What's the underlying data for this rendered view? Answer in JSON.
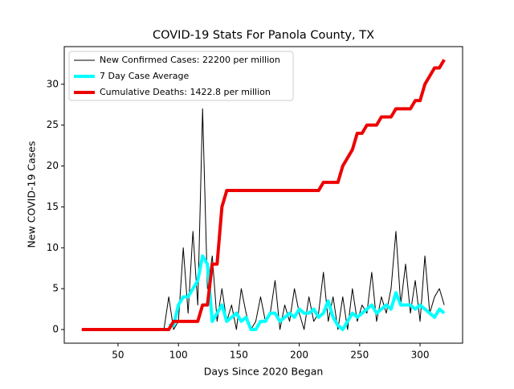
{
  "chart_data": {
    "type": "line",
    "title": "COVID-19 Stats For Panola County, TX",
    "x_label": "Days Since 2020 Began",
    "y_label": "New COVID-19 Cases",
    "x": [
      20,
      24,
      28,
      32,
      36,
      40,
      44,
      48,
      52,
      56,
      60,
      64,
      68,
      72,
      76,
      80,
      84,
      88,
      92,
      96,
      100,
      104,
      108,
      112,
      116,
      120,
      124,
      128,
      132,
      136,
      140,
      144,
      148,
      152,
      156,
      160,
      164,
      168,
      172,
      176,
      180,
      184,
      188,
      192,
      196,
      200,
      204,
      208,
      212,
      216,
      220,
      224,
      228,
      232,
      236,
      240,
      244,
      248,
      252,
      256,
      260,
      264,
      268,
      272,
      276,
      280,
      284,
      288,
      292,
      296,
      300,
      304,
      308,
      312,
      316,
      320
    ],
    "series": [
      {
        "name": "New Confirmed Cases: 22200 per million",
        "color": "#000000",
        "width": 1,
        "values": [
          0,
          0,
          0,
          0,
          0,
          0,
          0,
          0,
          0,
          0,
          0,
          0,
          0,
          0,
          0,
          0,
          0,
          0,
          4,
          0,
          1,
          10,
          2,
          12,
          3,
          27,
          5,
          9,
          1,
          5,
          1,
          3,
          0,
          5,
          2,
          0,
          1,
          4,
          1,
          2,
          6,
          0,
          3,
          1,
          5,
          2,
          0,
          4,
          1,
          2,
          7,
          1,
          4,
          0,
          4,
          0,
          5,
          1,
          3,
          2,
          7,
          1,
          4,
          2,
          5,
          12,
          3,
          8,
          2,
          6,
          1,
          9,
          2,
          4,
          5,
          3
        ]
      },
      {
        "name": "7 Day Case Average",
        "color": "#00ffff",
        "width": 4,
        "values": [
          null,
          null,
          null,
          null,
          null,
          null,
          null,
          null,
          null,
          null,
          null,
          null,
          null,
          null,
          null,
          null,
          null,
          null,
          0.5,
          0.5,
          3,
          4,
          4,
          5,
          6,
          9,
          8,
          1,
          2,
          3,
          1,
          1.5,
          2,
          1,
          1.5,
          0,
          0,
          1,
          1,
          2,
          2,
          1,
          1.5,
          2,
          1.5,
          2.5,
          2,
          2,
          2.5,
          1.5,
          2,
          3.5,
          1.5,
          0.5,
          0,
          1,
          2,
          1.5,
          2,
          2.5,
          3,
          2,
          2.5,
          3,
          2.5,
          4.5,
          3,
          3,
          3,
          2.5,
          3,
          2.5,
          2,
          1.5,
          2.5,
          2
        ]
      },
      {
        "name": "Cumulative Deaths: 1422.8 per million",
        "color": "#ee0000",
        "width": 4,
        "values": [
          0,
          0,
          0,
          0,
          0,
          0,
          0,
          0,
          0,
          0,
          0,
          0,
          0,
          0,
          0,
          0,
          0,
          0,
          0,
          1,
          1,
          1,
          1,
          1,
          1,
          3,
          3,
          8,
          8,
          15,
          17,
          17,
          17,
          17,
          17,
          17,
          17,
          17,
          17,
          17,
          17,
          17,
          17,
          17,
          17,
          17,
          17,
          17,
          17,
          17,
          18,
          18,
          18,
          18,
          20,
          21,
          22,
          24,
          24,
          25,
          25,
          25,
          26,
          26,
          26,
          27,
          27,
          27,
          27,
          28,
          28,
          30,
          31,
          32,
          32,
          33
        ]
      }
    ],
    "xlim": [
      5.5,
      335.2
    ],
    "ylim": [
      -1.67,
      34.6
    ],
    "xticks": [
      50,
      100,
      150,
      200,
      250,
      300
    ],
    "yticks": [
      0,
      5,
      10,
      15,
      20,
      25,
      30
    ],
    "legend": "upper-left"
  }
}
